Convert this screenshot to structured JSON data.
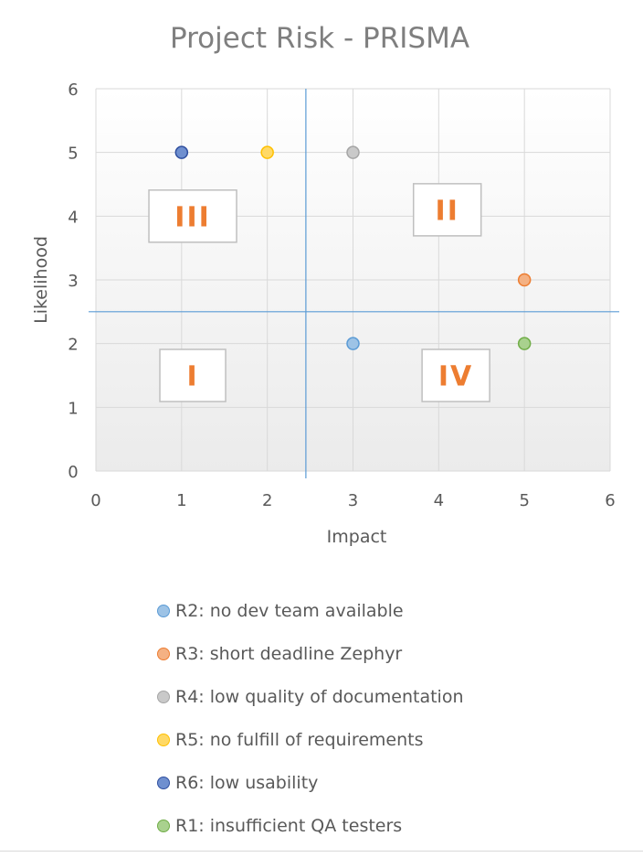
{
  "chart_data": {
    "type": "scatter",
    "title": "Project Risk - PRISMA",
    "xlabel": "Impact",
    "ylabel": "Likelihood",
    "xlim": [
      0,
      6
    ],
    "ylim": [
      0,
      6
    ],
    "xticks": [
      "0",
      "1",
      "2",
      "3",
      "4",
      "5",
      "6"
    ],
    "yticks": [
      "0",
      "1",
      "2",
      "3",
      "4",
      "5",
      "6"
    ],
    "grid": true,
    "quadrant_dividers": {
      "x": 2.45,
      "y": 2.5
    },
    "quadrant_labels": [
      {
        "text": "III",
        "x": 1.13,
        "y": 4.0
      },
      {
        "text": "II",
        "x": 4.1,
        "y": 4.1
      },
      {
        "text": "I",
        "x": 1.13,
        "y": 1.5
      },
      {
        "text": "IV",
        "x": 4.2,
        "y": 1.5
      }
    ],
    "series": [
      {
        "name": "R2: no dev team available",
        "x": [
          3
        ],
        "y": [
          2
        ],
        "color": "#9dc3e6",
        "stroke": "#5b9bd5"
      },
      {
        "name": "R3: short deadline Zephyr",
        "x": [
          5
        ],
        "y": [
          3
        ],
        "color": "#f4b183",
        "stroke": "#ed7d31"
      },
      {
        "name": "R4: low quality of  documentation",
        "x": [
          3
        ],
        "y": [
          5
        ],
        "color": "#c9c9c9",
        "stroke": "#a5a5a5"
      },
      {
        "name": "R5: no fulfill of requirements",
        "x": [
          2
        ],
        "y": [
          5
        ],
        "color": "#ffd966",
        "stroke": "#ffc000"
      },
      {
        "name": "R6: low usability",
        "x": [
          1
        ],
        "y": [
          5
        ],
        "color": "#6f8fcf",
        "stroke": "#2f4f9f"
      },
      {
        "name": "R1: insufficient QA testers",
        "x": [
          5
        ],
        "y": [
          2
        ],
        "color": "#a9d18e",
        "stroke": "#70ad47"
      }
    ],
    "legend_position": "bottom",
    "quadrant_label_color": "#ed7d31",
    "divider_color": "#5b9bd5"
  }
}
